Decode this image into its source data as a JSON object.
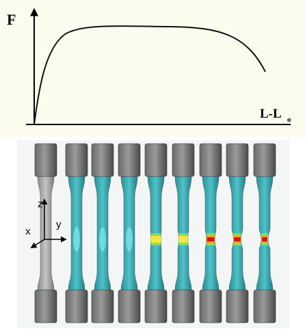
{
  "graph": {
    "y_axis_label": "F",
    "x_axis_label": "L-L",
    "x_axis_label_subscript": "o"
  },
  "axes_triad": {
    "z": "z",
    "x": "x",
    "y": "y"
  }
}
